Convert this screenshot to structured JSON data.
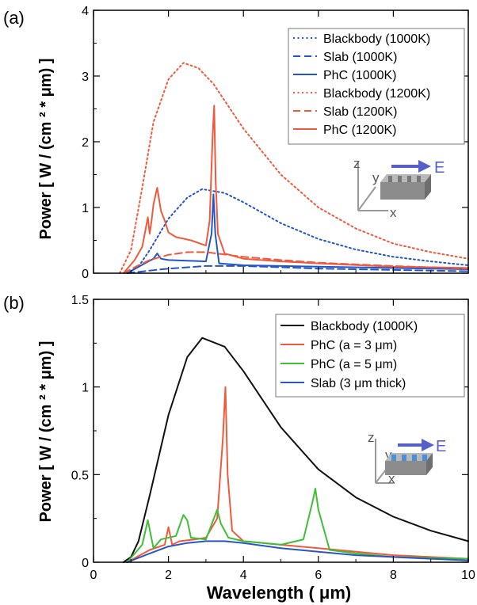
{
  "chart_data": [
    {
      "panel_label": "(a)",
      "type": "line",
      "ylabel": "Power [ W / (cm ² * μm) ]",
      "xlabel": "",
      "xlim": [
        0,
        10
      ],
      "ylim": [
        0,
        4
      ],
      "x_ticks": [
        0,
        2,
        4,
        6,
        8,
        10
      ],
      "x_tick_labels": [
        "",
        "",
        "",
        "",
        "",
        ""
      ],
      "y_ticks": [
        0,
        1,
        2,
        3,
        4
      ],
      "y_tick_labels": [
        "0",
        "1",
        "2",
        "3",
        "4"
      ],
      "grid": false,
      "legend_position": "top-right",
      "series": [
        {
          "name": "Blackbody (1000K)",
          "color": "#2255cc",
          "style": "dotted",
          "x": [
            0.9,
            1.2,
            1.5,
            2.0,
            2.5,
            2.9,
            3.5,
            4.0,
            5.0,
            6.0,
            7.0,
            8.0,
            9.0,
            10.0
          ],
          "y": [
            0.0,
            0.1,
            0.35,
            0.83,
            1.15,
            1.28,
            1.22,
            1.08,
            0.76,
            0.52,
            0.36,
            0.25,
            0.18,
            0.12
          ]
        },
        {
          "name": "Slab (1000K)",
          "color": "#2255cc",
          "style": "dashed",
          "x": [
            0.9,
            1.5,
            2.0,
            3.0,
            4.0,
            5.0,
            6.0,
            8.0,
            10.0
          ],
          "y": [
            0.0,
            0.04,
            0.07,
            0.11,
            0.11,
            0.09,
            0.07,
            0.05,
            0.03
          ]
        },
        {
          "name": "PhC (1000K)",
          "color": "#2255cc",
          "style": "solid",
          "x": [
            0.9,
            1.4,
            1.6,
            1.7,
            1.8,
            2.0,
            2.5,
            3.0,
            3.15,
            3.2,
            3.25,
            3.35,
            4.0,
            5.0,
            6.0,
            8.0,
            10.0
          ],
          "y": [
            0.0,
            0.16,
            0.22,
            0.3,
            0.22,
            0.2,
            0.19,
            0.18,
            0.6,
            1.2,
            0.6,
            0.15,
            0.12,
            0.11,
            0.1,
            0.08,
            0.06
          ]
        },
        {
          "name": "Blackbody (1200K)",
          "color": "#f05a3c",
          "style": "dotted",
          "x": [
            0.7,
            1.0,
            1.3,
            1.6,
            2.0,
            2.4,
            2.8,
            3.2,
            4.0,
            5.0,
            6.0,
            7.0,
            8.0,
            9.0,
            10.0
          ],
          "y": [
            0.0,
            0.35,
            1.3,
            2.3,
            2.95,
            3.2,
            3.12,
            2.88,
            2.2,
            1.5,
            1.0,
            0.68,
            0.45,
            0.32,
            0.22
          ]
        },
        {
          "name": "Slab (1200K)",
          "color": "#f05a3c",
          "style": "dashed",
          "x": [
            0.8,
            1.2,
            1.5,
            2.0,
            2.5,
            3.0,
            4.0,
            5.0,
            6.0,
            8.0,
            10.0
          ],
          "y": [
            0.0,
            0.12,
            0.2,
            0.28,
            0.32,
            0.32,
            0.25,
            0.2,
            0.16,
            0.11,
            0.07
          ]
        },
        {
          "name": "PhC (1200K)",
          "color": "#f05a3c",
          "style": "solid",
          "x": [
            0.8,
            1.1,
            1.3,
            1.45,
            1.5,
            1.55,
            1.6,
            1.7,
            1.8,
            1.9,
            2.0,
            2.2,
            2.6,
            3.0,
            3.1,
            3.18,
            3.22,
            3.26,
            3.32,
            3.5,
            4.0,
            5.0,
            6.0,
            8.0,
            10.0
          ],
          "y": [
            0.0,
            0.2,
            0.4,
            0.85,
            0.6,
            0.8,
            1.05,
            1.3,
            0.95,
            0.8,
            0.62,
            0.55,
            0.5,
            0.42,
            0.8,
            2.1,
            2.55,
            1.4,
            0.6,
            0.3,
            0.22,
            0.18,
            0.15,
            0.1,
            0.08
          ]
        }
      ],
      "inset": {
        "axis_labels": [
          "z",
          "y",
          "x"
        ],
        "field_label": "E"
      }
    },
    {
      "panel_label": "(b)",
      "type": "line",
      "ylabel": "Power [ W / (cm ² * μm) ]",
      "xlabel": "Wavelength ( μm)",
      "xlim": [
        0,
        10
      ],
      "ylim": [
        0,
        1.5
      ],
      "x_ticks": [
        0,
        2,
        4,
        6,
        8,
        10
      ],
      "x_tick_labels": [
        "0",
        "2",
        "4",
        "6",
        "8",
        "10"
      ],
      "y_ticks": [
        0,
        0.5,
        1,
        1.5
      ],
      "y_tick_labels": [
        "0",
        "0.5",
        "1",
        "1.5"
      ],
      "grid": false,
      "legend_position": "top-right",
      "series": [
        {
          "name": "Blackbody (1000K)",
          "color": "#111111",
          "style": "solid",
          "x": [
            0.8,
            1.0,
            1.2,
            1.5,
            2.0,
            2.5,
            2.9,
            3.5,
            4.0,
            5.0,
            6.0,
            7.0,
            8.0,
            9.0,
            10.0
          ],
          "y": [
            0.0,
            0.03,
            0.12,
            0.38,
            0.84,
            1.17,
            1.28,
            1.23,
            1.09,
            0.77,
            0.53,
            0.37,
            0.26,
            0.18,
            0.12
          ]
        },
        {
          "name": "PhC (a = 3 μm)",
          "color": "#f05a3c",
          "style": "solid",
          "x": [
            0.9,
            1.5,
            1.9,
            2.0,
            2.1,
            2.3,
            2.7,
            3.0,
            3.3,
            3.45,
            3.52,
            3.58,
            3.7,
            4.0,
            5.0,
            6.0,
            8.0,
            10.0
          ],
          "y": [
            0.0,
            0.07,
            0.1,
            0.2,
            0.1,
            0.12,
            0.13,
            0.14,
            0.25,
            0.7,
            1.0,
            0.5,
            0.18,
            0.12,
            0.1,
            0.08,
            0.04,
            0.02
          ]
        },
        {
          "name": "PhC (a = 5 μm)",
          "color": "#3fbf34",
          "style": "solid",
          "x": [
            0.9,
            1.3,
            1.45,
            1.6,
            1.8,
            2.2,
            2.4,
            2.5,
            2.6,
            3.0,
            3.3,
            3.4,
            3.6,
            4.0,
            5.0,
            5.6,
            5.85,
            5.92,
            6.0,
            6.3,
            7.0,
            8.0,
            10.0
          ],
          "y": [
            0.0,
            0.1,
            0.24,
            0.08,
            0.13,
            0.15,
            0.27,
            0.24,
            0.14,
            0.13,
            0.3,
            0.22,
            0.14,
            0.12,
            0.1,
            0.13,
            0.35,
            0.42,
            0.3,
            0.07,
            0.05,
            0.03,
            0.02
          ]
        },
        {
          "name": "Slab (3 μm thick)",
          "color": "#2a55c4",
          "style": "solid",
          "x": [
            0.9,
            1.5,
            2.0,
            2.5,
            3.0,
            3.5,
            4.0,
            5.0,
            6.0,
            7.0,
            8.0,
            10.0
          ],
          "y": [
            0.0,
            0.05,
            0.09,
            0.11,
            0.12,
            0.12,
            0.11,
            0.08,
            0.06,
            0.04,
            0.03,
            0.01
          ]
        }
      ],
      "inset": {
        "axis_labels": [
          "z",
          "y",
          "x"
        ],
        "field_label": "E"
      }
    }
  ]
}
